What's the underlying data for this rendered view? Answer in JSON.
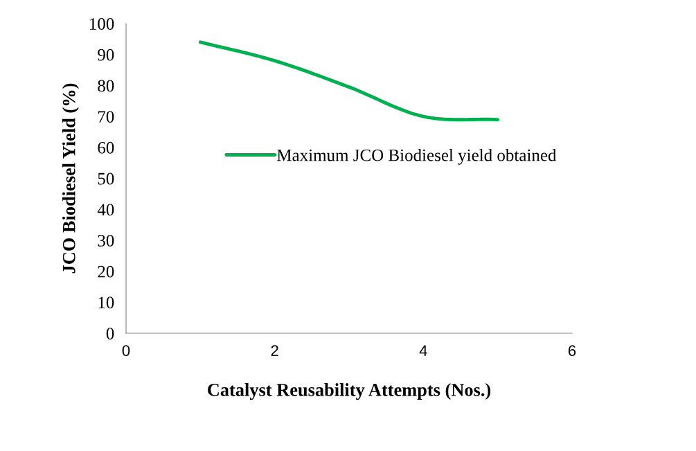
{
  "chart_data": {
    "type": "line",
    "xlabel": "Catalyst Reusability Attempts (Nos.)",
    "ylabel": "JCO Biodiesel Yield (%)",
    "x": [
      1,
      2,
      3,
      4,
      5
    ],
    "series": [
      {
        "name": "Maximum JCO Biodiesel yield obtained",
        "color": "#00b050",
        "values": [
          94,
          88,
          79.5,
          70,
          69
        ]
      }
    ],
    "xlim": [
      0,
      6
    ],
    "xticks": [
      0,
      2,
      4,
      6
    ],
    "ylim": [
      0,
      100
    ],
    "yticks": [
      0,
      10,
      20,
      30,
      40,
      50,
      60,
      70,
      80,
      90,
      100
    ],
    "grid": false,
    "legend": "right",
    "marker": "none",
    "line_style": "solid"
  }
}
